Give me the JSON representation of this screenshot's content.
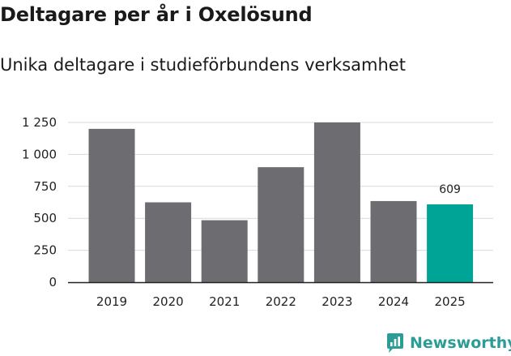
{
  "title": "Deltagare per år i Oxelösund",
  "subtitle": "Unika deltagare i studieförbundens verksamhet",
  "brand": {
    "name": "Newsworthy",
    "icon": "newsworthy-logo-icon",
    "color": "#2b9d96"
  },
  "colors": {
    "bar": "#6d6c71",
    "highlight": "#00a497",
    "grid": "#d9d9d9",
    "axis": "#222222"
  },
  "chart_data": {
    "type": "bar",
    "categories": [
      "2019",
      "2020",
      "2021",
      "2022",
      "2023",
      "2024",
      "2025"
    ],
    "values": [
      1200,
      625,
      485,
      900,
      1250,
      635,
      609
    ],
    "highlight_index": 6,
    "data_labels": [
      {
        "index": 6,
        "text": "609"
      }
    ],
    "yticks": [
      0,
      250,
      500,
      750,
      1000,
      1250
    ],
    "ytick_labels": [
      "0",
      "250",
      "500",
      "750",
      "1 000",
      "1 250"
    ],
    "ylim": [
      0,
      1250
    ],
    "grid": true,
    "xlabel": "",
    "ylabel": ""
  }
}
